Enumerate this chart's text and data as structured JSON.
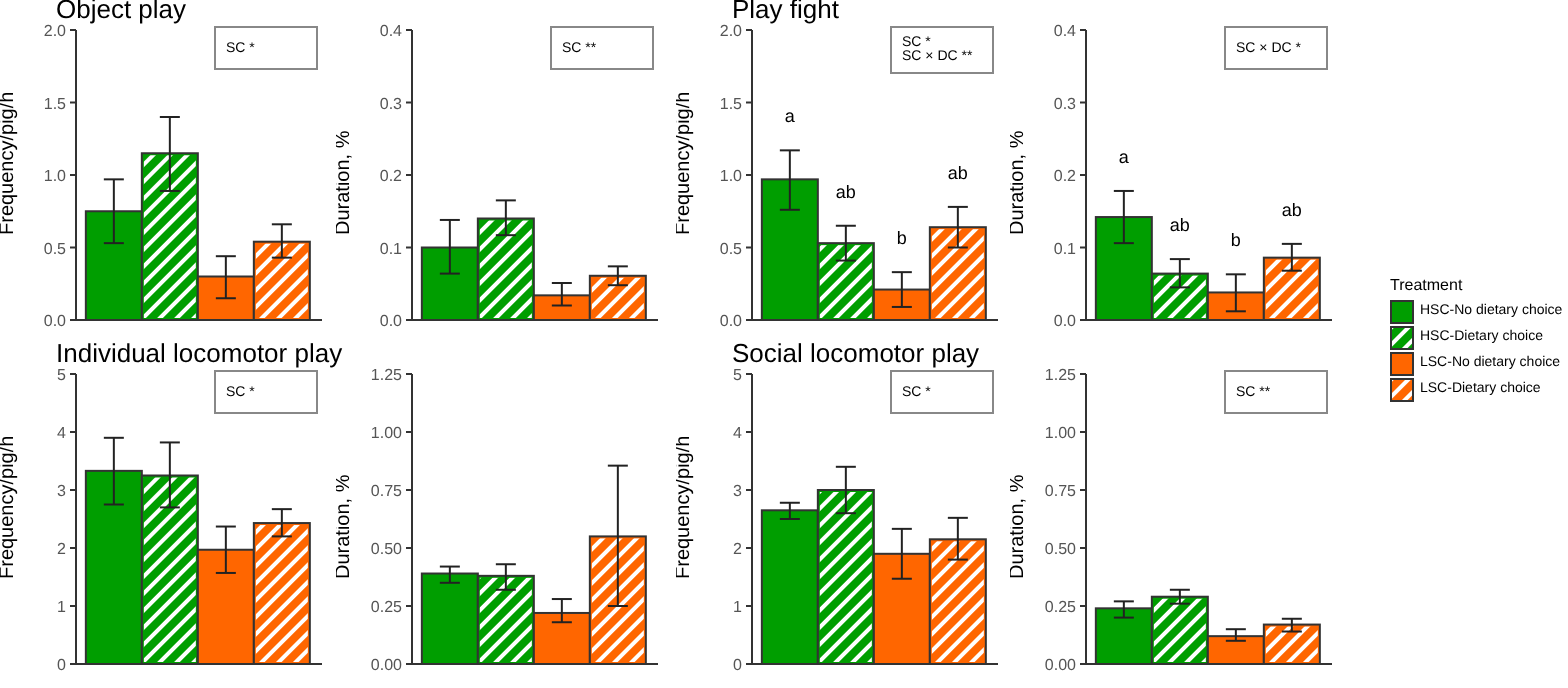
{
  "chart_data": [
    {
      "type": "bar",
      "title": "Object play",
      "ylabel": "Frequency/pig/h",
      "categories": [
        null
      ],
      "ylim": [
        0,
        2
      ],
      "yticks": [
        {
          "value": 0,
          "label": "0.0"
        },
        {
          "value": 0.5,
          "label": "0.5"
        },
        {
          "value": 1,
          "label": "1.0"
        },
        {
          "value": 1.5,
          "label": "1.5"
        },
        {
          "value": 2,
          "label": "2.0"
        }
      ],
      "tick_labels": "y",
      "annotations": [
        "SC *"
      ],
      "series": [
        {
          "color": "#009e00",
          "values": [
            0.75
          ],
          "errors": [
            [
              0.53,
              0.97
            ]
          ]
        },
        {
          "color": "#009e00",
          "values": [
            1.15
          ],
          "errors": [
            [
              0.89,
              1.4
            ]
          ]
        },
        {
          "color": "#ff6600",
          "values": [
            0.3
          ],
          "errors": [
            [
              0.15,
              0.44
            ]
          ]
        },
        {
          "color": "#ff6600",
          "values": [
            0.54
          ],
          "errors": [
            [
              0.43,
              0.66
            ]
          ]
        }
      ]
    },
    {
      "type": "bar",
      "ylabel": "Duration, %",
      "categories": [
        null
      ],
      "ylim": [
        0,
        0.4
      ],
      "yticks": [
        {
          "value": 0,
          "label": "0.0"
        },
        0.1,
        0.2,
        0.3,
        0.4
      ],
      "tick_labels": "y",
      "annotations": [
        "SC **"
      ],
      "series": [
        {
          "color": "#009e00",
          "values": [
            0.1
          ],
          "errors": [
            [
              0.064,
              0.138
            ]
          ]
        },
        {
          "color": "#009e00",
          "values": [
            0.14
          ],
          "errors": [
            [
              0.117,
              0.165
            ]
          ]
        },
        {
          "color": "#ff6600",
          "values": [
            0.034
          ],
          "errors": [
            [
              0.02,
              0.051
            ]
          ]
        },
        {
          "color": "#ff6600",
          "values": [
            0.061
          ],
          "errors": [
            [
              0.048,
              0.074
            ]
          ]
        }
      ]
    },
    {
      "type": "bar",
      "title": "Play fight",
      "ylabel": "Frequency/pig/h",
      "categories": [
        null
      ],
      "ylim": [
        0,
        2
      ],
      "yticks": [
        {
          "value": 0,
          "label": "0.0"
        },
        {
          "value": 0.5,
          "label": "0.5"
        },
        {
          "value": 1,
          "label": "1.0"
        },
        {
          "value": 1.5,
          "label": "1.5"
        },
        {
          "value": 2,
          "label": "2.0"
        }
      ],
      "tick_labels": "y",
      "annotations": [
        "SC *",
        "SC × DC **"
      ],
      "series": [
        {
          "color": "#009e00",
          "values": [
            0.97
          ],
          "errors": [
            [
              0.76,
              1.17
            ]
          ],
          "value_labels": [
            "a"
          ]
        },
        {
          "color": "#009e00",
          "values": [
            0.53
          ],
          "errors": [
            [
              0.41,
              0.65
            ]
          ],
          "value_labels": [
            "ab"
          ]
        },
        {
          "color": "#ff6600",
          "values": [
            0.21
          ],
          "errors": [
            [
              0.09,
              0.33
            ]
          ],
          "value_labels": [
            "b"
          ]
        },
        {
          "color": "#ff6600",
          "values": [
            0.64
          ],
          "errors": [
            [
              0.5,
              0.78
            ]
          ],
          "value_labels": [
            "ab"
          ]
        }
      ]
    },
    {
      "type": "bar",
      "ylabel": "Duration, %",
      "categories": [
        null
      ],
      "ylim": [
        0,
        0.4
      ],
      "yticks": [
        {
          "value": 0,
          "label": "0.0"
        },
        0.1,
        0.2,
        0.3,
        0.4
      ],
      "tick_labels": "y",
      "annotations": [
        "SC × DC *"
      ],
      "legend": "right",
      "legend_title": "Treatment",
      "series": [
        {
          "name": "HSC-No dietary choice",
          "color": "#009e00",
          "values": [
            0.142
          ],
          "errors": [
            [
              0.106,
              0.178
            ]
          ],
          "value_labels": [
            "a"
          ]
        },
        {
          "name": "HSC-Dietary choice",
          "color": "#009e00",
          "values": [
            0.064
          ],
          "errors": [
            [
              0.045,
              0.084
            ]
          ],
          "value_labels": [
            "ab"
          ]
        },
        {
          "name": "LSC-No dietary choice",
          "color": "#ff6600",
          "values": [
            0.038
          ],
          "errors": [
            [
              0.012,
              0.063
            ]
          ],
          "value_labels": [
            "b"
          ]
        },
        {
          "name": "LSC-Dietary choice",
          "color": "#ff6600",
          "values": [
            0.086
          ],
          "errors": [
            [
              0.068,
              0.105
            ]
          ],
          "value_labels": [
            "ab"
          ]
        }
      ]
    },
    {
      "type": "bar",
      "title": "Individual locomotor play",
      "ylabel": "Frequency/pig/h",
      "categories": [
        null
      ],
      "ylim": [
        0,
        5
      ],
      "yticks": [
        0,
        1,
        2,
        3,
        4,
        5
      ],
      "tick_labels": "y",
      "annotations": [
        "SC *"
      ],
      "series": [
        {
          "color": "#009e00",
          "values": [
            3.33
          ],
          "errors": [
            [
              2.75,
              3.9
            ]
          ]
        },
        {
          "color": "#009e00",
          "values": [
            3.25
          ],
          "errors": [
            [
              2.7,
              3.82
            ]
          ]
        },
        {
          "color": "#ff6600",
          "values": [
            1.97
          ],
          "errors": [
            [
              1.57,
              2.37
            ]
          ]
        },
        {
          "color": "#ff6600",
          "values": [
            2.43
          ],
          "errors": [
            [
              2.2,
              2.67
            ]
          ]
        }
      ]
    },
    {
      "type": "bar",
      "ylabel": "Duration, %",
      "categories": [
        null
      ],
      "ylim": [
        0,
        1.25
      ],
      "yticks": [
        {
          "value": 0,
          "label": "0.00"
        },
        0.25,
        {
          "value": 0.5,
          "label": "0.50"
        },
        0.75,
        {
          "value": 1,
          "label": "1.00"
        },
        1.25
      ],
      "tick_labels": "y",
      "series": [
        {
          "color": "#009e00",
          "values": [
            0.39
          ],
          "errors": [
            [
              0.35,
              0.42
            ]
          ]
        },
        {
          "color": "#009e00",
          "values": [
            0.38
          ],
          "errors": [
            [
              0.32,
              0.43
            ]
          ]
        },
        {
          "color": "#ff6600",
          "values": [
            0.22
          ],
          "errors": [
            [
              0.18,
              0.28
            ]
          ]
        },
        {
          "color": "#ff6600",
          "values": [
            0.55
          ],
          "errors": [
            [
              0.25,
              0.855
            ]
          ]
        }
      ]
    },
    {
      "type": "bar",
      "title": "Social locomotor play",
      "ylabel": "Frequency/pig/h",
      "categories": [
        null
      ],
      "ylim": [
        0,
        5
      ],
      "yticks": [
        0,
        1,
        2,
        3,
        4,
        5
      ],
      "tick_labels": "y",
      "annotations": [
        "SC *"
      ],
      "series": [
        {
          "color": "#009e00",
          "values": [
            2.65
          ],
          "errors": [
            [
              2.5,
              2.78
            ]
          ]
        },
        {
          "color": "#009e00",
          "values": [
            3.0
          ],
          "errors": [
            [
              2.6,
              3.4
            ]
          ]
        },
        {
          "color": "#ff6600",
          "values": [
            1.9
          ],
          "errors": [
            [
              1.47,
              2.33
            ]
          ]
        },
        {
          "color": "#ff6600",
          "values": [
            2.15
          ],
          "errors": [
            [
              1.8,
              2.52
            ]
          ]
        }
      ]
    },
    {
      "type": "bar",
      "ylabel": "Duration, %",
      "categories": [
        null
      ],
      "ylim": [
        0,
        1.25
      ],
      "yticks": [
        {
          "value": 0,
          "label": "0.00"
        },
        0.25,
        {
          "value": 0.5,
          "label": "0.50"
        },
        0.75,
        {
          "value": 1,
          "label": "1.00"
        },
        1.25
      ],
      "tick_labels": "y",
      "annotations": [
        "SC **"
      ],
      "series": [
        {
          "color": "#009e00",
          "values": [
            0.24
          ],
          "errors": [
            [
              0.2,
              0.27
            ]
          ]
        },
        {
          "color": "#009e00",
          "values": [
            0.29
          ],
          "errors": [
            [
              0.26,
              0.32
            ]
          ]
        },
        {
          "color": "#ff6600",
          "values": [
            0.12
          ],
          "errors": [
            [
              0.1,
              0.15
            ]
          ]
        },
        {
          "color": "#ff6600",
          "values": [
            0.17
          ],
          "errors": [
            [
              0.14,
              0.195
            ]
          ]
        }
      ]
    }
  ]
}
